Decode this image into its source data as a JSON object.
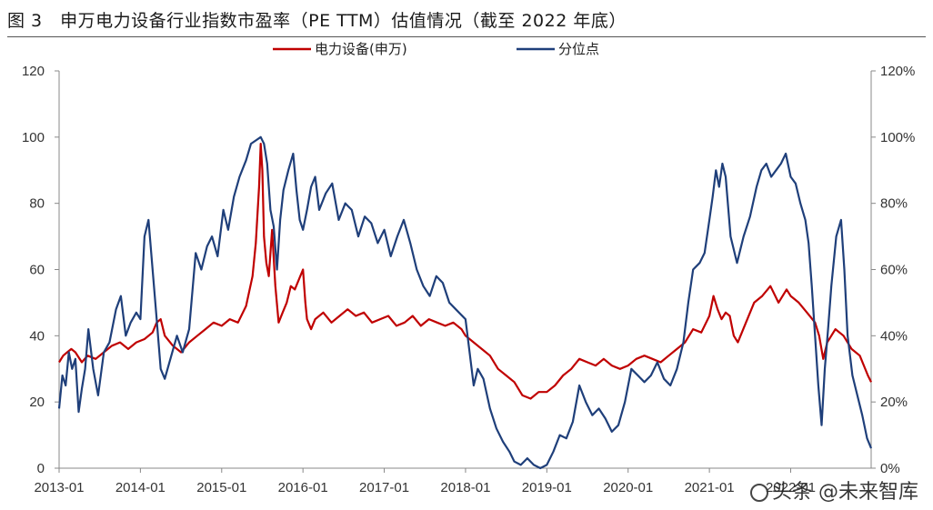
{
  "title": "图 3　申万电力设备行业指数市盈率（PE TTM）估值情况（截至 2022 年底）",
  "watermark": "头条 @未来智库",
  "colors": {
    "pe_line": "#C00000",
    "pct_line": "#1F3F7A",
    "axis": "#888888",
    "grid": "#999999"
  },
  "chart_data": {
    "type": "line",
    "title": "图 3　申万电力设备行业指数市盈率（PE TTM）估值情况（截至 2022 年底）",
    "x_ticks": [
      "2013-01",
      "2014-01",
      "2015-01",
      "2016-01",
      "2017-01",
      "2018-01",
      "2019-01",
      "2020-01",
      "2021-01",
      "2022-01"
    ],
    "x_range": [
      2013.0,
      2022.99
    ],
    "y_left": {
      "ticks": [
        "0",
        "20",
        "40",
        "60",
        "80",
        "100",
        "120"
      ],
      "range": [
        0,
        120
      ]
    },
    "y_right": {
      "ticks": [
        "0%",
        "20%",
        "40%",
        "60%",
        "80%",
        "100%",
        "120%"
      ],
      "range": [
        0,
        120
      ]
    },
    "legend_position": "top-center",
    "series": [
      {
        "name": "电力设备(申万)",
        "axis": "left",
        "color": "#C00000",
        "points": [
          [
            2013.0,
            32
          ],
          [
            2013.05,
            34
          ],
          [
            2013.1,
            35
          ],
          [
            2013.15,
            36
          ],
          [
            2013.2,
            35
          ],
          [
            2013.28,
            32
          ],
          [
            2013.35,
            34
          ],
          [
            2013.45,
            33
          ],
          [
            2013.55,
            35
          ],
          [
            2013.65,
            37
          ],
          [
            2013.75,
            38
          ],
          [
            2013.85,
            36
          ],
          [
            2013.95,
            38
          ],
          [
            2014.05,
            39
          ],
          [
            2014.15,
            41
          ],
          [
            2014.2,
            44
          ],
          [
            2014.25,
            45
          ],
          [
            2014.3,
            40
          ],
          [
            2014.4,
            37
          ],
          [
            2014.5,
            35
          ],
          [
            2014.6,
            38
          ],
          [
            2014.7,
            40
          ],
          [
            2014.8,
            42
          ],
          [
            2014.9,
            44
          ],
          [
            2015.0,
            43
          ],
          [
            2015.1,
            45
          ],
          [
            2015.2,
            44
          ],
          [
            2015.3,
            49
          ],
          [
            2015.38,
            58
          ],
          [
            2015.42,
            68
          ],
          [
            2015.46,
            85
          ],
          [
            2015.48,
            98
          ],
          [
            2015.5,
            90
          ],
          [
            2015.52,
            70
          ],
          [
            2015.55,
            62
          ],
          [
            2015.58,
            58
          ],
          [
            2015.62,
            72
          ],
          [
            2015.66,
            55
          ],
          [
            2015.7,
            44
          ],
          [
            2015.75,
            47
          ],
          [
            2015.8,
            50
          ],
          [
            2015.85,
            55
          ],
          [
            2015.9,
            54
          ],
          [
            2015.95,
            57
          ],
          [
            2016.0,
            60
          ],
          [
            2016.03,
            50
          ],
          [
            2016.05,
            45
          ],
          [
            2016.1,
            42
          ],
          [
            2016.15,
            45
          ],
          [
            2016.25,
            47
          ],
          [
            2016.35,
            44
          ],
          [
            2016.45,
            46
          ],
          [
            2016.55,
            48
          ],
          [
            2016.65,
            46
          ],
          [
            2016.75,
            47
          ],
          [
            2016.85,
            44
          ],
          [
            2016.95,
            45
          ],
          [
            2017.05,
            46
          ],
          [
            2017.15,
            43
          ],
          [
            2017.25,
            44
          ],
          [
            2017.35,
            46
          ],
          [
            2017.45,
            43
          ],
          [
            2017.55,
            45
          ],
          [
            2017.65,
            44
          ],
          [
            2017.75,
            43
          ],
          [
            2017.85,
            44
          ],
          [
            2017.95,
            42
          ],
          [
            2018.0,
            40
          ],
          [
            2018.1,
            38
          ],
          [
            2018.2,
            36
          ],
          [
            2018.3,
            34
          ],
          [
            2018.4,
            30
          ],
          [
            2018.5,
            28
          ],
          [
            2018.6,
            26
          ],
          [
            2018.7,
            22
          ],
          [
            2018.8,
            21
          ],
          [
            2018.9,
            23
          ],
          [
            2019.0,
            23
          ],
          [
            2019.1,
            25
          ],
          [
            2019.2,
            28
          ],
          [
            2019.3,
            30
          ],
          [
            2019.4,
            33
          ],
          [
            2019.5,
            32
          ],
          [
            2019.6,
            31
          ],
          [
            2019.7,
            33
          ],
          [
            2019.8,
            31
          ],
          [
            2019.9,
            30
          ],
          [
            2020.0,
            31
          ],
          [
            2020.1,
            33
          ],
          [
            2020.2,
            34
          ],
          [
            2020.3,
            33
          ],
          [
            2020.4,
            32
          ],
          [
            2020.5,
            34
          ],
          [
            2020.6,
            36
          ],
          [
            2020.7,
            38
          ],
          [
            2020.8,
            42
          ],
          [
            2020.9,
            41
          ],
          [
            2021.0,
            46
          ],
          [
            2021.05,
            52
          ],
          [
            2021.1,
            48
          ],
          [
            2021.15,
            45
          ],
          [
            2021.2,
            47
          ],
          [
            2021.25,
            46
          ],
          [
            2021.3,
            40
          ],
          [
            2021.35,
            38
          ],
          [
            2021.45,
            44
          ],
          [
            2021.55,
            50
          ],
          [
            2021.65,
            52
          ],
          [
            2021.75,
            55
          ],
          [
            2021.85,
            50
          ],
          [
            2021.95,
            54
          ],
          [
            2022.0,
            52
          ],
          [
            2022.1,
            50
          ],
          [
            2022.2,
            47
          ],
          [
            2022.3,
            44
          ],
          [
            2022.35,
            40
          ],
          [
            2022.4,
            33
          ],
          [
            2022.45,
            38
          ],
          [
            2022.55,
            42
          ],
          [
            2022.65,
            40
          ],
          [
            2022.75,
            36
          ],
          [
            2022.85,
            34
          ],
          [
            2022.95,
            28
          ],
          [
            2022.99,
            26
          ]
        ]
      },
      {
        "name": "分位点",
        "axis": "right",
        "color": "#1F3F7A",
        "points": [
          [
            2013.0,
            18
          ],
          [
            2013.04,
            28
          ],
          [
            2013.08,
            25
          ],
          [
            2013.12,
            35
          ],
          [
            2013.16,
            30
          ],
          [
            2013.2,
            33
          ],
          [
            2013.24,
            17
          ],
          [
            2013.28,
            24
          ],
          [
            2013.32,
            30
          ],
          [
            2013.36,
            42
          ],
          [
            2013.42,
            30
          ],
          [
            2013.48,
            22
          ],
          [
            2013.55,
            35
          ],
          [
            2013.62,
            38
          ],
          [
            2013.7,
            48
          ],
          [
            2013.76,
            52
          ],
          [
            2013.82,
            40
          ],
          [
            2013.88,
            44
          ],
          [
            2013.95,
            47
          ],
          [
            2014.0,
            45
          ],
          [
            2014.05,
            70
          ],
          [
            2014.1,
            75
          ],
          [
            2014.15,
            60
          ],
          [
            2014.2,
            45
          ],
          [
            2014.25,
            30
          ],
          [
            2014.3,
            27
          ],
          [
            2014.38,
            34
          ],
          [
            2014.45,
            40
          ],
          [
            2014.52,
            35
          ],
          [
            2014.6,
            42
          ],
          [
            2014.68,
            65
          ],
          [
            2014.75,
            60
          ],
          [
            2014.82,
            67
          ],
          [
            2014.88,
            70
          ],
          [
            2014.95,
            64
          ],
          [
            2015.02,
            78
          ],
          [
            2015.08,
            72
          ],
          [
            2015.15,
            82
          ],
          [
            2015.22,
            88
          ],
          [
            2015.3,
            93
          ],
          [
            2015.36,
            98
          ],
          [
            2015.42,
            99
          ],
          [
            2015.48,
            100
          ],
          [
            2015.52,
            98
          ],
          [
            2015.56,
            92
          ],
          [
            2015.6,
            78
          ],
          [
            2015.64,
            73
          ],
          [
            2015.68,
            60
          ],
          [
            2015.72,
            75
          ],
          [
            2015.76,
            84
          ],
          [
            2015.82,
            90
          ],
          [
            2015.88,
            95
          ],
          [
            2015.92,
            84
          ],
          [
            2015.96,
            75
          ],
          [
            2016.0,
            72
          ],
          [
            2016.05,
            78
          ],
          [
            2016.1,
            85
          ],
          [
            2016.15,
            88
          ],
          [
            2016.2,
            78
          ],
          [
            2016.28,
            83
          ],
          [
            2016.36,
            86
          ],
          [
            2016.44,
            75
          ],
          [
            2016.52,
            80
          ],
          [
            2016.6,
            78
          ],
          [
            2016.68,
            70
          ],
          [
            2016.76,
            76
          ],
          [
            2016.84,
            74
          ],
          [
            2016.92,
            68
          ],
          [
            2017.0,
            72
          ],
          [
            2017.08,
            64
          ],
          [
            2017.16,
            70
          ],
          [
            2017.24,
            75
          ],
          [
            2017.32,
            68
          ],
          [
            2017.4,
            60
          ],
          [
            2017.48,
            55
          ],
          [
            2017.56,
            52
          ],
          [
            2017.64,
            58
          ],
          [
            2017.72,
            56
          ],
          [
            2017.8,
            50
          ],
          [
            2017.88,
            48
          ],
          [
            2018.0,
            45
          ],
          [
            2018.05,
            35
          ],
          [
            2018.1,
            25
          ],
          [
            2018.15,
            30
          ],
          [
            2018.22,
            27
          ],
          [
            2018.3,
            18
          ],
          [
            2018.38,
            12
          ],
          [
            2018.46,
            8
          ],
          [
            2018.54,
            5
          ],
          [
            2018.6,
            2
          ],
          [
            2018.68,
            1
          ],
          [
            2018.76,
            3
          ],
          [
            2018.84,
            1
          ],
          [
            2018.92,
            0
          ],
          [
            2019.0,
            1
          ],
          [
            2019.08,
            5
          ],
          [
            2019.16,
            10
          ],
          [
            2019.24,
            9
          ],
          [
            2019.32,
            14
          ],
          [
            2019.4,
            25
          ],
          [
            2019.48,
            20
          ],
          [
            2019.56,
            16
          ],
          [
            2019.64,
            18
          ],
          [
            2019.72,
            15
          ],
          [
            2019.8,
            11
          ],
          [
            2019.88,
            13
          ],
          [
            2019.96,
            20
          ],
          [
            2020.04,
            30
          ],
          [
            2020.12,
            28
          ],
          [
            2020.2,
            26
          ],
          [
            2020.28,
            28
          ],
          [
            2020.36,
            32
          ],
          [
            2020.44,
            27
          ],
          [
            2020.52,
            25
          ],
          [
            2020.6,
            30
          ],
          [
            2020.68,
            38
          ],
          [
            2020.74,
            50
          ],
          [
            2020.8,
            60
          ],
          [
            2020.88,
            62
          ],
          [
            2020.94,
            65
          ],
          [
            2021.0,
            75
          ],
          [
            2021.04,
            82
          ],
          [
            2021.08,
            90
          ],
          [
            2021.12,
            85
          ],
          [
            2021.16,
            92
          ],
          [
            2021.2,
            88
          ],
          [
            2021.26,
            70
          ],
          [
            2021.34,
            62
          ],
          [
            2021.42,
            70
          ],
          [
            2021.5,
            76
          ],
          [
            2021.58,
            85
          ],
          [
            2021.64,
            90
          ],
          [
            2021.7,
            92
          ],
          [
            2021.76,
            88
          ],
          [
            2021.82,
            90
          ],
          [
            2021.88,
            92
          ],
          [
            2021.94,
            95
          ],
          [
            2022.0,
            88
          ],
          [
            2022.06,
            86
          ],
          [
            2022.12,
            80
          ],
          [
            2022.18,
            75
          ],
          [
            2022.22,
            68
          ],
          [
            2022.26,
            55
          ],
          [
            2022.3,
            40
          ],
          [
            2022.34,
            25
          ],
          [
            2022.38,
            13
          ],
          [
            2022.42,
            30
          ],
          [
            2022.46,
            42
          ],
          [
            2022.5,
            55
          ],
          [
            2022.56,
            70
          ],
          [
            2022.62,
            75
          ],
          [
            2022.66,
            60
          ],
          [
            2022.7,
            40
          ],
          [
            2022.76,
            28
          ],
          [
            2022.82,
            22
          ],
          [
            2022.88,
            16
          ],
          [
            2022.94,
            9
          ],
          [
            2022.99,
            6
          ]
        ]
      }
    ]
  }
}
